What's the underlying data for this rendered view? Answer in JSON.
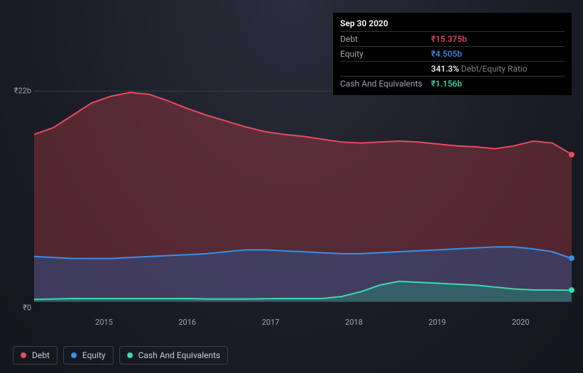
{
  "tooltip": {
    "date": "Sep 30 2020",
    "rows": [
      {
        "label": "Debt",
        "value": "₹15.375b",
        "cls": "debt"
      },
      {
        "label": "Equity",
        "value": "₹4.505b",
        "cls": "equity"
      },
      {
        "label": "",
        "value": "341.3%",
        "suffix": "Debt/Equity Ratio",
        "cls": "ratio"
      },
      {
        "label": "Cash And Equivalents",
        "value": "₹1.156b",
        "cls": "cash"
      }
    ]
  },
  "chart": {
    "type": "stacked-area",
    "background": "transparent",
    "yAxis": {
      "min": 0,
      "max": 22,
      "unit": "b",
      "prefix": "₹",
      "ticks": [
        {
          "pos": 0,
          "label": "₹22b"
        },
        {
          "pos": 100,
          "label": "₹0"
        }
      ]
    },
    "xAxis": {
      "labels": [
        "2015",
        "2016",
        "2017",
        "2018",
        "2019",
        "2020"
      ],
      "positions": [
        13,
        28.5,
        44,
        59.5,
        75,
        90.5
      ]
    },
    "series": {
      "debt": {
        "label": "Debt",
        "stroke": "#e84a5f",
        "fill": "rgba(168,58,66,0.42)",
        "strokeWidth": 2,
        "values": [
          17.5,
          18.2,
          19.5,
          20.8,
          21.5,
          21.9,
          21.7,
          21.0,
          20.2,
          19.5,
          18.9,
          18.3,
          17.8,
          17.5,
          17.3,
          17.0,
          16.7,
          16.6,
          16.7,
          16.8,
          16.7,
          16.5,
          16.3,
          16.2,
          16.0,
          16.3,
          16.8,
          16.6,
          15.4
        ],
        "endY": 30
      },
      "equity": {
        "label": "Equity",
        "stroke": "#3c8ee8",
        "fill": "rgba(42,86,150,0.45)",
        "strokeWidth": 2,
        "values": [
          4.7,
          4.6,
          4.5,
          4.5,
          4.5,
          4.6,
          4.7,
          4.8,
          4.9,
          5.0,
          5.2,
          5.4,
          5.4,
          5.3,
          5.2,
          5.1,
          5.0,
          5.0,
          5.1,
          5.2,
          5.3,
          5.4,
          5.5,
          5.6,
          5.7,
          5.7,
          5.5,
          5.2,
          4.5
        ],
        "endY": 79.5
      },
      "cash": {
        "label": "Cash And Equivalents",
        "stroke": "#3dd9af",
        "fill": "rgba(40,140,115,0.45)",
        "strokeWidth": 2,
        "values": [
          0.2,
          0.25,
          0.3,
          0.3,
          0.3,
          0.3,
          0.3,
          0.3,
          0.3,
          0.25,
          0.25,
          0.25,
          0.28,
          0.3,
          0.3,
          0.3,
          0.5,
          1.0,
          1.7,
          2.1,
          2.0,
          1.9,
          1.8,
          1.7,
          1.5,
          1.3,
          1.2,
          1.2,
          1.16
        ],
        "endY": 94.7
      }
    },
    "legend": [
      {
        "label": "Debt",
        "cls": "debt"
      },
      {
        "label": "Equity",
        "cls": "equity"
      },
      {
        "label": "Cash And Equivalents",
        "cls": "cash"
      }
    ],
    "colors": {
      "gridline": "#3a3d48",
      "text": "#a0a4b0"
    }
  }
}
